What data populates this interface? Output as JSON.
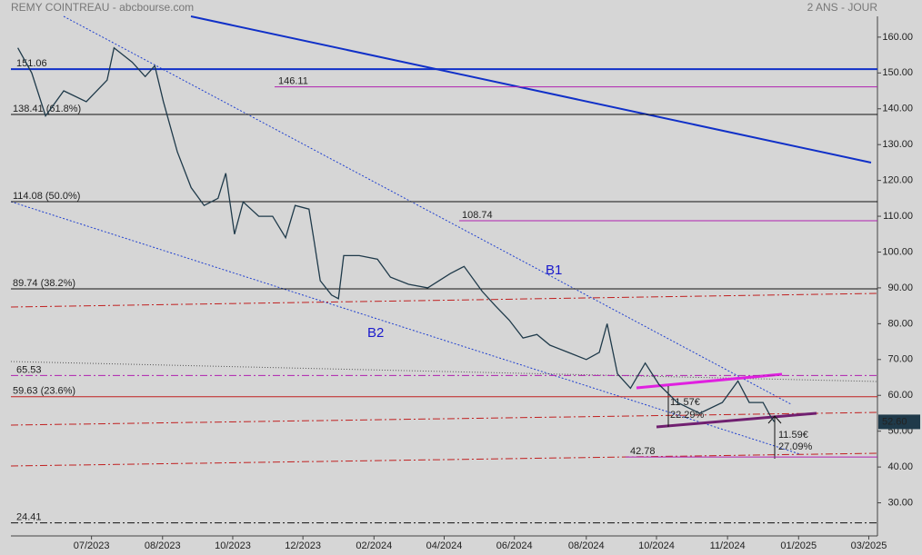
{
  "chart_data": {
    "type": "line",
    "title": "REMY COINTREAU - abcbourse.com",
    "subtitle": "2 ANS - JOUR",
    "color": "#1f3a4a",
    "x": [
      0.8,
      2.4,
      4.0,
      6.1,
      8.7,
      11.1,
      11.9,
      14.0,
      15.5,
      16.6,
      17.6,
      19.2,
      20.8,
      22.3,
      23.9,
      24.8,
      25.8,
      26.8,
      28.6,
      30.2,
      31.7,
      32.8,
      34.4,
      35.0,
      35.7,
      37.0,
      37.8,
      38.4,
      40.2,
      42.3,
      43.8,
      45.9,
      48.1,
      50.7,
      52.3,
      54.4,
      55.9,
      57.5,
      59.1,
      60.7,
      62.2,
      64.3,
      66.4,
      67.9,
      68.8,
      70.0,
      71.5,
      73.2,
      74.8,
      76.9,
      79.5,
      82.1,
      83.9,
      85.2,
      86.8,
      87.7,
      88.1
    ],
    "values": [
      157,
      150,
      138,
      145,
      142,
      148,
      157,
      153,
      149,
      152,
      142,
      128,
      118,
      113,
      115,
      122,
      105,
      114,
      110,
      110,
      104,
      113,
      112,
      103,
      92,
      88,
      87,
      99,
      99,
      98,
      93,
      91,
      90,
      94,
      96,
      89,
      85,
      81,
      76,
      77,
      74,
      72,
      70,
      72,
      80,
      66,
      62,
      69,
      63,
      58,
      55,
      58,
      64,
      58,
      58,
      54,
      52.6
    ],
    "xlim": [
      0,
      100
    ],
    "xticks": [
      {
        "value": 9.3,
        "label": "07/2023"
      },
      {
        "value": 17.5,
        "label": "08/2023"
      },
      {
        "value": 25.6,
        "label": "10/2023"
      },
      {
        "value": 33.7,
        "label": "12/2023"
      },
      {
        "value": 41.9,
        "label": "02/2024"
      },
      {
        "value": 50.0,
        "label": "04/2024"
      },
      {
        "value": 58.1,
        "label": "06/2024"
      },
      {
        "value": 66.4,
        "label": "08/2024"
      },
      {
        "value": 74.5,
        "label": "10/2024"
      },
      {
        "value": 82.7,
        "label": "11/2024"
      },
      {
        "value": 90.9,
        "label": "01/2025"
      },
      {
        "value": 99.0,
        "label": "03/2025"
      }
    ],
    "ylim": [
      23.8,
      165.8
    ],
    "yticks": [
      {
        "value": 30,
        "label": "30.00"
      },
      {
        "value": 40,
        "label": "40.00"
      },
      {
        "value": 50,
        "label": "50.00"
      },
      {
        "value": 60,
        "label": "60.00"
      },
      {
        "value": 70,
        "label": "70.00"
      },
      {
        "value": 80,
        "label": "80.00"
      },
      {
        "value": 90,
        "label": "90.00"
      },
      {
        "value": 100,
        "label": "100.00"
      },
      {
        "value": 110,
        "label": "110.00"
      },
      {
        "value": 120,
        "label": "120.00"
      },
      {
        "value": 130,
        "label": "130.00"
      },
      {
        "value": 140,
        "label": "140.00"
      },
      {
        "value": 150,
        "label": "150.00"
      },
      {
        "value": 160,
        "label": "160.00"
      }
    ],
    "last_price": {
      "value": 52.6,
      "label": "52.60"
    },
    "levels": [
      {
        "value": 151.06,
        "label": "151.06",
        "color": "#1030c8",
        "style": "solid"
      },
      {
        "value": 146.11,
        "label": "146.11",
        "color": "#b020b0",
        "style": "solid"
      },
      {
        "value": 138.41,
        "label": "138.41  (61.8%)",
        "color": "#111111",
        "style": "solid"
      },
      {
        "value": 114.08,
        "label": "114.08  (50.0%)",
        "color": "#111111",
        "style": "solid"
      },
      {
        "value": 108.74,
        "label": "108.74",
        "color": "#b020b0",
        "style": "solid"
      },
      {
        "value": 89.74,
        "label": "89.74  (38.2%)",
        "color": "#111111",
        "style": "solid"
      },
      {
        "value": 65.53,
        "label": "65.53",
        "color": "#b020b0",
        "style": "dashdot"
      },
      {
        "value": 59.63,
        "label": "59.63  (23.6%)",
        "color": "#c02020",
        "style": "solid"
      },
      {
        "value": 42.78,
        "label": "42.78",
        "color": "#b020b0",
        "style": "solid"
      },
      {
        "value": 24.41,
        "label": "24.41",
        "color": "#111111",
        "style": "dashdot"
      }
    ],
    "annotations": [
      "B1",
      "B2",
      "11.57€",
      "22.29%",
      "11.59€",
      "27.09%"
    ]
  }
}
